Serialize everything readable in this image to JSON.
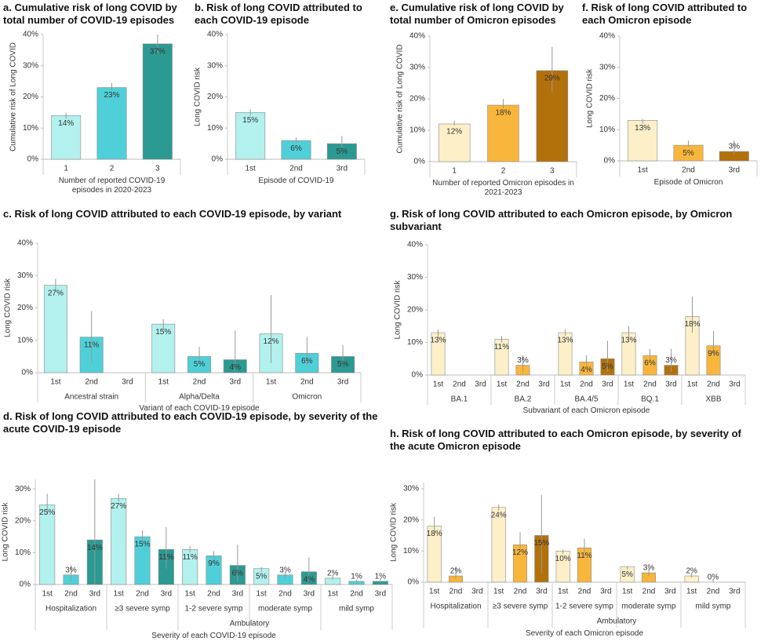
{
  "chart_data": [
    {
      "type": "bar",
      "title": "a. Cumulative  risk of long COVID by total number of COVID-19 episodes",
      "ylabel": "Cumulative risk of Long COVID",
      "xlabel": "Number of reported COVID-19 episodes in 2020-2023",
      "ylim": [
        0,
        40
      ],
      "yticks": [
        {
          "value": 0,
          "label": "0%"
        },
        {
          "value": 10,
          "label": "10%"
        },
        {
          "value": 20,
          "label": "20%"
        },
        {
          "value": 30,
          "label": "30%"
        },
        {
          "value": 40,
          "label": "40%"
        }
      ],
      "colors": [
        "#b2f1ee",
        "#4fd0d8",
        "#2b9a92"
      ],
      "groups": [
        {
          "categories": [
            "1",
            "2",
            "3"
          ],
          "values": [
            14,
            23,
            37
          ],
          "value_labels": [
            "14%",
            "23%",
            "37%"
          ],
          "ci": [
            [
              13,
              15
            ],
            [
              22,
              24.5
            ],
            [
              34,
              40
            ]
          ]
        }
      ]
    },
    {
      "type": "bar",
      "title": "b. Risk of long COVID attributed to each COVID-19 episode",
      "ylabel": "Long COVID risk",
      "xlabel": "Episode of COVID-19",
      "ylim": [
        0,
        40
      ],
      "yticks": [
        {
          "value": 0,
          "label": "0%"
        },
        {
          "value": 10,
          "label": "10%"
        },
        {
          "value": 20,
          "label": "20%"
        },
        {
          "value": 30,
          "label": "30%"
        },
        {
          "value": 40,
          "label": "40%"
        }
      ],
      "colors": [
        "#b2f1ee",
        "#4fd0d8",
        "#2b9a92"
      ],
      "groups": [
        {
          "categories": [
            "1st",
            "2nd",
            "3rd"
          ],
          "values": [
            15,
            6,
            5
          ],
          "value_labels": [
            "15%",
            "6%",
            "5%"
          ],
          "ci": [
            [
              14,
              16
            ],
            [
              5,
              7
            ],
            [
              4,
              7.5
            ]
          ]
        }
      ]
    },
    {
      "type": "bar",
      "title": "e. Cumulative  risk of long COVID by total number of Omicron episodes",
      "ylabel": "Cumulative risk of Long COVID",
      "xlabel": "Number of reported Omicron episodes in 2021-2023",
      "ylim": [
        0,
        40
      ],
      "yticks": [
        {
          "value": 0,
          "label": "0%"
        },
        {
          "value": 10,
          "label": "10%"
        },
        {
          "value": 20,
          "label": "20%"
        },
        {
          "value": 30,
          "label": "30%"
        },
        {
          "value": 40,
          "label": "40%"
        }
      ],
      "colors": [
        "#fdf0c9",
        "#f9b63c",
        "#b3710b"
      ],
      "groups": [
        {
          "categories": [
            "1",
            "2",
            "3"
          ],
          "values": [
            12,
            18,
            29
          ],
          "value_labels": [
            "12%",
            "18%",
            "29%"
          ],
          "ci": [
            [
              11.5,
              13
            ],
            [
              17,
              20
            ],
            [
              22,
              36.5
            ]
          ]
        }
      ]
    },
    {
      "type": "bar",
      "title": "f. Risk of long COVID attributed to each Omicron episode",
      "ylabel": "Long COVID risk",
      "xlabel": "Episode of Omicron",
      "ylim": [
        0,
        40
      ],
      "yticks": [
        {
          "value": 0,
          "label": "0%"
        },
        {
          "value": 10,
          "label": "10%"
        },
        {
          "value": 20,
          "label": "20%"
        },
        {
          "value": 30,
          "label": "30%"
        },
        {
          "value": 40,
          "label": "40%"
        }
      ],
      "colors": [
        "#fdf0c9",
        "#f9b63c",
        "#b3710b"
      ],
      "groups": [
        {
          "categories": [
            "1st",
            "2nd",
            "3rd"
          ],
          "values": [
            13,
            5,
            3
          ],
          "value_labels": [
            "13%",
            "5%",
            "3%"
          ],
          "ci": [
            [
              12,
              13.5
            ],
            [
              4.5,
              6.5
            ],
            [
              2,
              6.5
            ]
          ]
        }
      ]
    },
    {
      "type": "bar",
      "title": "c. Risk of long COVID attributed to each COVID-19 episode, by variant",
      "ylabel": "Long COVID risk",
      "xlabel": "Variant of each COVID-19 episode",
      "ylim": [
        0,
        40
      ],
      "yticks": [
        {
          "value": 0,
          "label": "0%"
        },
        {
          "value": 10,
          "label": "10%"
        },
        {
          "value": 20,
          "label": "20%"
        },
        {
          "value": 30,
          "label": "30%"
        },
        {
          "value": 40,
          "label": "40%"
        }
      ],
      "colors": [
        "#b2f1ee",
        "#4fd0d8",
        "#2b9a92"
      ],
      "groups": [
        {
          "label": "Ancestral strain",
          "categories": [
            "1st",
            "2nd",
            "3rd"
          ],
          "values": [
            27,
            11,
            null
          ],
          "value_labels": [
            "27%",
            "11%",
            null
          ],
          "ci": [
            [
              25,
              29
            ],
            [
              3,
              19
            ],
            null
          ]
        },
        {
          "label": "Alpha/Delta",
          "categories": [
            "1st",
            "2nd",
            "3rd"
          ],
          "values": [
            15,
            5,
            4
          ],
          "value_labels": [
            "15%",
            "5%",
            "4%"
          ],
          "ci": [
            [
              13,
              16.5
            ],
            [
              3,
              8
            ],
            [
              0,
              13
            ]
          ]
        },
        {
          "label": "Omicron",
          "categories": [
            "1st",
            "2nd",
            "3rd"
          ],
          "values": [
            12,
            6,
            5
          ],
          "value_labels": [
            "12%",
            "6%",
            "5%"
          ],
          "ci": [
            [
              3,
              24
            ],
            [
              2,
              11
            ],
            [
              3,
              8.5
            ]
          ]
        }
      ]
    },
    {
      "type": "bar",
      "title": "g. Risk of long COVID attributed to each Omicron episode, by Omicron subvariant",
      "ylabel": "Long COVID risk",
      "xlabel": "Subvariant of each Omicron episode",
      "ylim": [
        0,
        40
      ],
      "yticks": [
        {
          "value": 0,
          "label": "0%"
        },
        {
          "value": 10,
          "label": "10%"
        },
        {
          "value": 20,
          "label": "20%"
        },
        {
          "value": 30,
          "label": "30%"
        },
        {
          "value": 40,
          "label": "40%"
        }
      ],
      "colors": [
        "#fdf0c9",
        "#f9b63c",
        "#b3710b"
      ],
      "groups": [
        {
          "label": "BA.1",
          "categories": [
            "1st",
            "2nd",
            "3rd"
          ],
          "values": [
            13,
            null,
            null
          ],
          "value_labels": [
            "13%",
            null,
            null
          ],
          "ci": [
            [
              11,
              14
            ],
            null,
            null
          ]
        },
        {
          "label": "BA.2",
          "categories": [
            "1st",
            "2nd",
            "3rd"
          ],
          "values": [
            11,
            3,
            null
          ],
          "value_labels": [
            "11%",
            "3%",
            null
          ],
          "ci": [
            [
              10,
              12
            ],
            [
              1,
              6
            ],
            null
          ]
        },
        {
          "label": "BA.4/5",
          "categories": [
            "1st",
            "2nd",
            "3rd"
          ],
          "values": [
            13,
            4,
            5
          ],
          "value_labels": [
            "13%",
            "4%",
            "5%"
          ],
          "ci": [
            [
              12,
              14
            ],
            [
              3,
              6
            ],
            [
              1,
              10.5
            ]
          ]
        },
        {
          "label": "BQ.1",
          "categories": [
            "1st",
            "2nd",
            "3rd"
          ],
          "values": [
            13,
            6,
            3
          ],
          "value_labels": [
            "13%",
            "6%",
            "3%"
          ],
          "ci": [
            [
              11,
              15
            ],
            [
              5,
              8
            ],
            [
              1,
              8
            ]
          ]
        },
        {
          "label": "XBB",
          "categories": [
            "1st",
            "2nd",
            "3rd"
          ],
          "values": [
            18,
            9,
            null
          ],
          "value_labels": [
            "18%",
            "9%",
            null
          ],
          "ci": [
            [
              13,
              24
            ],
            [
              6,
              13.5
            ],
            null
          ]
        }
      ]
    },
    {
      "type": "bar",
      "title": "d. Risk of long COVID attributed to each COVID-19 episode, by severity of the acute COVID-19 episode",
      "ylabel": "Long COVID risk",
      "xlabel": "Severity of each COVID-19 episode",
      "ylim": [
        0,
        33
      ],
      "yticks": [
        {
          "value": 0,
          "label": "0%"
        },
        {
          "value": 10,
          "label": "10%"
        },
        {
          "value": 20,
          "label": "20%"
        },
        {
          "value": 30,
          "label": "30%"
        }
      ],
      "colors": [
        "#b2f1ee",
        "#4fd0d8",
        "#2b9a92"
      ],
      "groups": [
        {
          "label": "Hospitalization",
          "categories": [
            "1st",
            "2nd",
            "3rd"
          ],
          "values": [
            25,
            3,
            14
          ],
          "value_labels": [
            "25%",
            "3%",
            "14%"
          ],
          "ci": [
            [
              22,
              28.5
            ],
            [
              1,
              6
            ],
            [
              0,
              33
            ]
          ]
        },
        {
          "label": "Ambulatory",
          "groups": [
            {
              "label": "≥3 severe symp",
              "categories": [
                "1st",
                "2nd",
                "3rd"
              ],
              "values": [
                27,
                15,
                11
              ],
              "value_labels": [
                "27%",
                "15%",
                "11%"
              ],
              "ci": [
                [
                  26,
                  28.5
                ],
                [
                  13,
                  17
                ],
                [
                  5,
                  18
                ]
              ]
            },
            {
              "label": "1-2 severe symp",
              "categories": [
                "1st",
                "2nd",
                "3rd"
              ],
              "values": [
                11,
                9,
                6
              ],
              "value_labels": [
                "11%",
                "9%",
                "6%"
              ],
              "ci": [
                [
                  10,
                  12
                ],
                [
                  7,
                  10.5
                ],
                [
                  1,
                  12.5
                ]
              ]
            },
            {
              "label": "moderate symp",
              "categories": [
                "1st",
                "2nd",
                "3rd"
              ],
              "values": [
                5,
                3,
                4
              ],
              "value_labels": [
                "5%",
                "3%",
                "4%"
              ],
              "ci": [
                [
                  4,
                  5.5
                ],
                [
                  2,
                  4
                ],
                [
                  1,
                  8.5
                ]
              ]
            },
            {
              "label": "mild symp",
              "categories": [
                "1st",
                "2nd",
                "3rd"
              ],
              "values": [
                2,
                1,
                1
              ],
              "value_labels": [
                "2%",
                "1%",
                "1%"
              ],
              "ci": [
                [
                  1.5,
                  3
                ],
                [
                  0.5,
                  1.5
                ],
                [
                  0.5,
                  2
                ]
              ]
            }
          ]
        }
      ]
    },
    {
      "type": "bar",
      "title": "h. Risk of long COVID attributed to each Omicron episode, by severity of the acute Omicron episode",
      "ylabel": "Long COVID risk",
      "xlabel": "Severity of each Omicron episode",
      "ylim": [
        0,
        32
      ],
      "yticks": [
        {
          "value": 0,
          "label": "0%"
        },
        {
          "value": 10,
          "label": "10%"
        },
        {
          "value": 20,
          "label": "20%"
        },
        {
          "value": 30,
          "label": "30%"
        }
      ],
      "colors": [
        "#fdf0c9",
        "#f9b63c",
        "#b3710b"
      ],
      "groups": [
        {
          "label": "Hospitalization",
          "categories": [
            "1st",
            "2nd",
            "3rd"
          ],
          "values": [
            18,
            2,
            null
          ],
          "value_labels": [
            "18%",
            "2%",
            null
          ],
          "ci": [
            [
              15,
              21
            ],
            [
              1,
              5
            ],
            null
          ]
        },
        {
          "label": "Ambulatory",
          "groups": [
            {
              "label": "≥3 severe symp",
              "categories": [
                "1st",
                "2nd",
                "3rd"
              ],
              "values": [
                24,
                12,
                15
              ],
              "value_labels": [
                "24%",
                "12%",
                "15%"
              ],
              "ci": [
                [
                  23,
                  25
                ],
                [
                  10,
                  16
                ],
                [
                  3,
                  28
                ]
              ]
            },
            {
              "label": "1-2 severe symp",
              "categories": [
                "1st",
                "2nd",
                "3rd"
              ],
              "values": [
                10,
                11,
                null
              ],
              "value_labels": [
                "10%",
                "11%",
                null
              ],
              "ci": [
                [
                  9,
                  10.5
                ],
                [
                  8,
                  14
                ],
                null
              ]
            },
            {
              "label": "moderate symp",
              "categories": [
                "1st",
                "2nd",
                "3rd"
              ],
              "values": [
                5,
                3,
                null
              ],
              "value_labels": [
                "5%",
                "3%",
                null
              ],
              "ci": [
                [
                  4,
                  5
                ],
                [
                  2,
                  4.5
                ],
                null
              ]
            },
            {
              "label": "mild symp",
              "categories": [
                "1st",
                "2nd",
                "3rd"
              ],
              "values": [
                2,
                0,
                null
              ],
              "value_labels": [
                "2%",
                "0%",
                null
              ],
              "ci": [
                [
                  1.5,
                  3
                ],
                [
                  0,
                  1
                ],
                null
              ]
            }
          ]
        }
      ]
    }
  ]
}
